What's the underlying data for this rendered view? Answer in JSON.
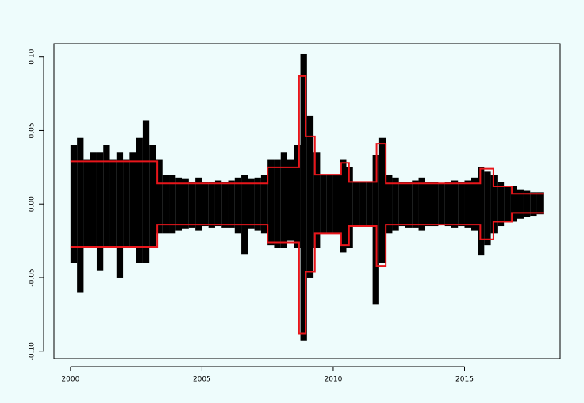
{
  "chart_data": {
    "type": "range",
    "xlim": [
      1999.37,
      2018.64
    ],
    "ylim": [
      -0.105,
      0.109
    ],
    "xticks": [
      2000,
      2005,
      2010,
      2015
    ],
    "yticks": [
      {
        "value": -0.1,
        "label": "-0.10"
      },
      -0.05,
      {
        "value": 0,
        "label": "0.00"
      },
      0.05,
      {
        "value": 0.1,
        "label": "0.10"
      }
    ],
    "returns": {
      "color": "#000000",
      "x": [
        2000,
        2000.25,
        2000.5,
        2000.75,
        2001,
        2001.25,
        2001.5,
        2001.75,
        2002,
        2002.25,
        2002.5,
        2002.75,
        2003,
        2003.25,
        2003.5,
        2003.75,
        2004,
        2004.25,
        2004.5,
        2004.75,
        2005,
        2005.25,
        2005.5,
        2005.75,
        2006,
        2006.25,
        2006.5,
        2006.75,
        2007,
        2007.25,
        2007.5,
        2007.75,
        2008,
        2008.25,
        2008.5,
        2008.75,
        2009,
        2009.25,
        2009.5,
        2009.75,
        2010,
        2010.25,
        2010.5,
        2010.75,
        2011,
        2011.25,
        2011.5,
        2011.75,
        2012,
        2012.25,
        2012.5,
        2012.75,
        2013,
        2013.25,
        2013.5,
        2013.75,
        2014,
        2014.25,
        2014.5,
        2014.75,
        2015,
        2015.25,
        2015.5,
        2015.75,
        2016,
        2016.25,
        2016.5,
        2016.75,
        2017,
        2017.25,
        2017.5,
        2017.75
      ],
      "high": [
        0.04,
        0.045,
        0.03,
        0.035,
        0.035,
        0.04,
        0.03,
        0.035,
        0.03,
        0.035,
        0.045,
        0.057,
        0.04,
        0.03,
        0.02,
        0.02,
        0.018,
        0.017,
        0.015,
        0.018,
        0.015,
        0.015,
        0.016,
        0.015,
        0.016,
        0.018,
        0.02,
        0.017,
        0.018,
        0.02,
        0.03,
        0.03,
        0.035,
        0.03,
        0.04,
        0.102,
        0.06,
        0.035,
        0.02,
        0.02,
        0.02,
        0.03,
        0.025,
        0.015,
        0.015,
        0.015,
        0.033,
        0.045,
        0.02,
        0.018,
        0.015,
        0.015,
        0.016,
        0.018,
        0.015,
        0.015,
        0.014,
        0.015,
        0.016,
        0.015,
        0.016,
        0.018,
        0.025,
        0.022,
        0.02,
        0.015,
        0.012,
        0.012,
        0.01,
        0.009,
        0.008,
        0.008
      ],
      "low": [
        -0.04,
        -0.06,
        -0.03,
        -0.03,
        -0.045,
        -0.03,
        -0.03,
        -0.05,
        -0.03,
        -0.03,
        -0.04,
        -0.04,
        -0.03,
        -0.02,
        -0.02,
        -0.02,
        -0.018,
        -0.017,
        -0.016,
        -0.018,
        -0.015,
        -0.016,
        -0.015,
        -0.016,
        -0.016,
        -0.02,
        -0.034,
        -0.017,
        -0.018,
        -0.02,
        -0.028,
        -0.03,
        -0.03,
        -0.025,
        -0.03,
        -0.093,
        -0.05,
        -0.03,
        -0.02,
        -0.02,
        -0.02,
        -0.033,
        -0.03,
        -0.015,
        -0.015,
        -0.015,
        -0.068,
        -0.04,
        -0.02,
        -0.018,
        -0.015,
        -0.016,
        -0.016,
        -0.018,
        -0.015,
        -0.015,
        -0.014,
        -0.015,
        -0.016,
        -0.015,
        -0.016,
        -0.018,
        -0.035,
        -0.028,
        -0.02,
        -0.015,
        -0.012,
        -0.012,
        -0.01,
        -0.009,
        -0.008,
        -0.007
      ]
    },
    "bands": {
      "color": "#e8161b",
      "x": [
        2000,
        2003.3,
        2007.5,
        2008.7,
        2008.95,
        2009.3,
        2010.3,
        2010.6,
        2011.65,
        2012.0,
        2015.6,
        2016.1,
        2016.8,
        2018.0
      ],
      "upper": [
        0.029,
        0.014,
        0.025,
        0.087,
        0.046,
        0.02,
        0.028,
        0.015,
        0.041,
        0.014,
        0.024,
        0.012,
        0.007,
        0.007
      ],
      "lower": [
        -0.029,
        -0.014,
        -0.026,
        -0.088,
        -0.046,
        -0.02,
        -0.028,
        -0.015,
        -0.042,
        -0.014,
        -0.024,
        -0.012,
        -0.006,
        -0.006
      ]
    }
  }
}
